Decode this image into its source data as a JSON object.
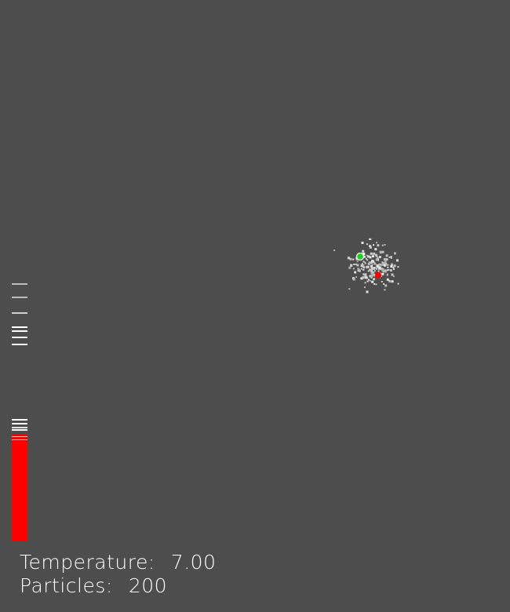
{
  "hud": {
    "temperature_label": "Temperature:",
    "temperature_value": "7.00",
    "particles_label": "Particles:",
    "particles_value": "200"
  },
  "simulation": {
    "temperature": 7.0,
    "particle_count": 200,
    "gauge_level": 0.4
  },
  "colors": {
    "background": "#4d4d4d",
    "particle": "#bdbdbd",
    "tracked_particle_a": "#22cc22",
    "tracked_particle_b": "#ff0000",
    "gauge_fill": "#ff0000",
    "gauge_tick": "#ffffff"
  }
}
